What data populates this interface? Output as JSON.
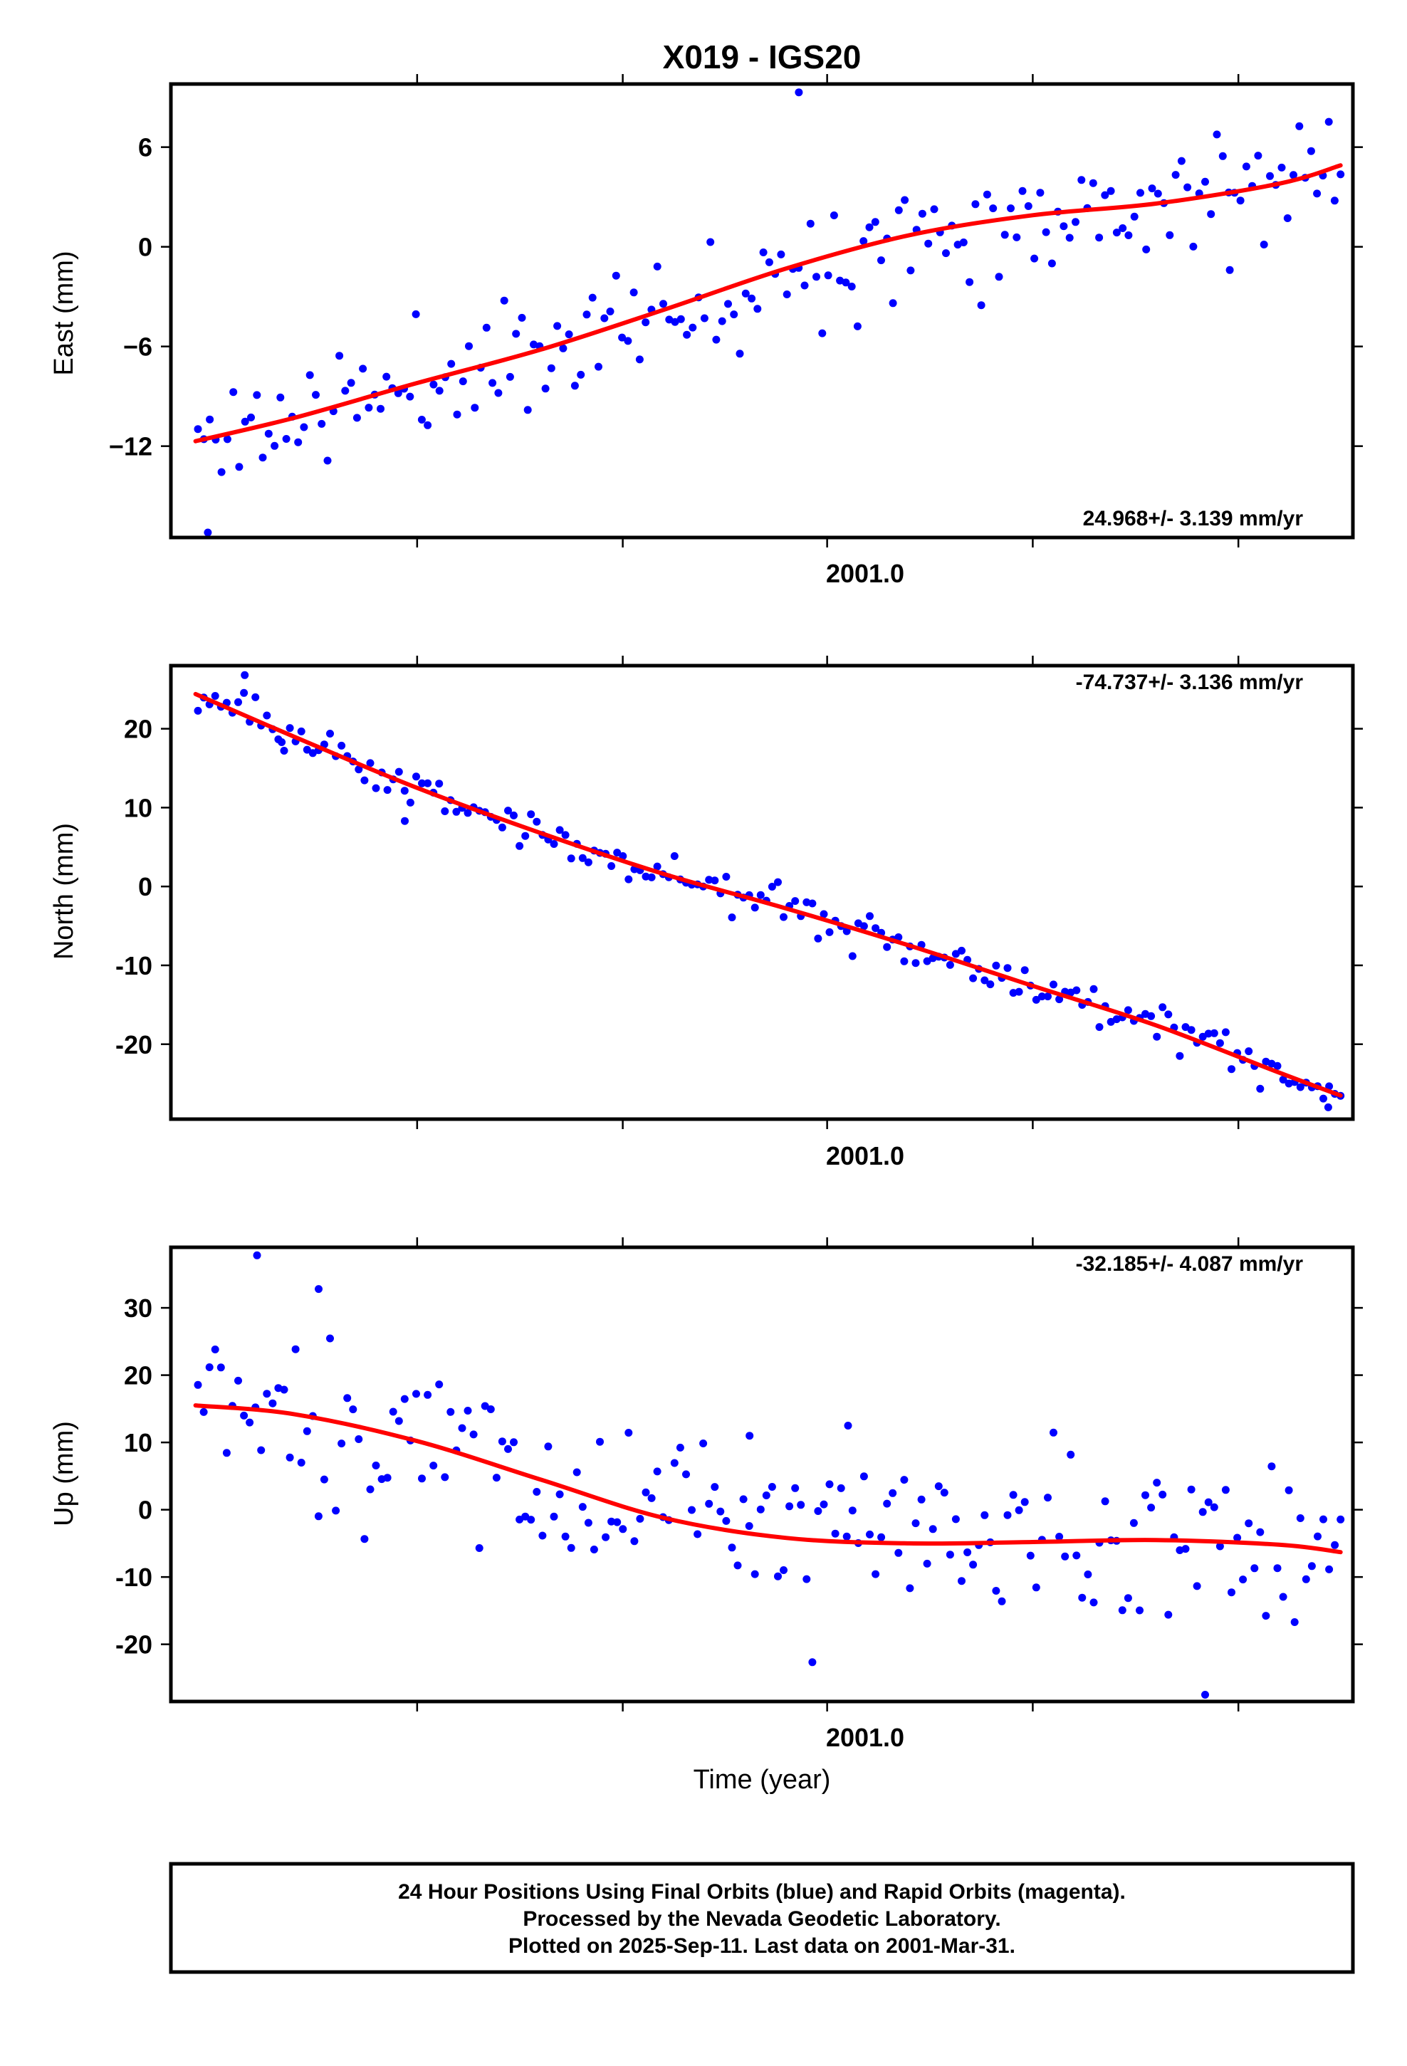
{
  "title": "X019 - IGS20",
  "colors": {
    "final_orbits": "#0000ff",
    "rapid_orbits": "#ff00ff",
    "model": "#ff0000"
  },
  "chart_data": [
    {
      "type": "scatter",
      "ylabel": "East (mm)",
      "xlabel": "",
      "rate_label": "24.968+/- 3.139 mm/yr",
      "xlim": [
        2000.3,
        2001.26
      ],
      "ylim": [
        -17.5,
        9.8
      ],
      "yticks": [
        6,
        0,
        -6,
        -12
      ],
      "ytick_labels": [
        "6",
        "0",
        "−6",
        "−12"
      ],
      "xtick_label": "2001.0",
      "xtick_value": 2001.0,
      "x_minor_ticks": [
        2000.5,
        2000.667,
        2000.833,
        2001.0,
        2001.167
      ],
      "fit": [
        [
          2000.32,
          -11.7
        ],
        [
          2000.4,
          -10.3
        ],
        [
          2000.5,
          -8.2
        ],
        [
          2000.6,
          -6.2
        ],
        [
          2000.7,
          -3.8
        ],
        [
          2000.8,
          -1.3
        ],
        [
          2000.9,
          0.7
        ],
        [
          2001.0,
          1.9
        ],
        [
          2001.1,
          2.6
        ],
        [
          2001.2,
          3.8
        ],
        [
          2001.25,
          4.9
        ]
      ],
      "series": [
        {
          "seed": 11,
          "n": 195,
          "x_start": 2000.322,
          "x_end": 2001.25,
          "noise": 1.7,
          "extra_points": [
            [
              2000.81,
              9.3
            ],
            [
              2000.33,
              -17.2
            ],
            [
              2001.16,
              -1.4
            ]
          ]
        }
      ]
    },
    {
      "type": "scatter",
      "ylabel": "North (mm)",
      "xlabel": "",
      "rate_label": "-74.737+/- 3.136 mm/yr",
      "xlim": [
        2000.3,
        2001.26
      ],
      "ylim": [
        -29.5,
        28
      ],
      "yticks": [
        20,
        10,
        0,
        -10,
        -20
      ],
      "ytick_labels": [
        "20",
        "10",
        "0",
        "-10",
        "-20"
      ],
      "xtick_label": "2001.0",
      "xtick_value": 2001.0,
      "x_minor_ticks": [
        2000.5,
        2000.667,
        2000.833,
        2001.0,
        2001.167
      ],
      "fit": [
        [
          2000.32,
          24.4
        ],
        [
          2000.4,
          19.0
        ],
        [
          2000.5,
          12.5
        ],
        [
          2000.6,
          6.8
        ],
        [
          2000.7,
          1.6
        ],
        [
          2000.8,
          -2.8
        ],
        [
          2000.9,
          -7.5
        ],
        [
          2001.0,
          -12.6
        ],
        [
          2001.1,
          -17.6
        ],
        [
          2001.2,
          -23.6
        ],
        [
          2001.25,
          -26.5
        ]
      ],
      "series": [
        {
          "seed": 23,
          "n": 200,
          "x_start": 2000.322,
          "x_end": 2001.25,
          "noise": 1.3,
          "extra_points": [
            [
              2000.36,
              26.8
            ],
            [
              2000.39,
              18.3
            ],
            [
              2000.49,
              8.3
            ],
            [
              2001.24,
              -28.0
            ]
          ]
        }
      ]
    },
    {
      "type": "scatter",
      "ylabel": "Up (mm)",
      "xlabel": "Time (year)",
      "rate_label": "-32.185+/- 4.087 mm/yr",
      "xlim": [
        2000.3,
        2001.26
      ],
      "ylim": [
        -28.5,
        39
      ],
      "yticks": [
        30,
        20,
        10,
        0,
        -10,
        -20
      ],
      "ytick_labels": [
        "30",
        "20",
        "10",
        "0",
        "-10",
        "-20"
      ],
      "xtick_label": "2001.0",
      "xtick_value": 2001.0,
      "x_minor_ticks": [
        2000.5,
        2000.667,
        2000.833,
        2001.0,
        2001.167
      ],
      "fit": [
        [
          2000.32,
          15.5
        ],
        [
          2000.4,
          14.2
        ],
        [
          2000.5,
          10.2
        ],
        [
          2000.6,
          4.5
        ],
        [
          2000.7,
          -1.2
        ],
        [
          2000.8,
          -4.2
        ],
        [
          2000.9,
          -5.0
        ],
        [
          2001.0,
          -4.8
        ],
        [
          2001.1,
          -4.5
        ],
        [
          2001.2,
          -5.2
        ],
        [
          2001.25,
          -6.3
        ]
      ],
      "series": [
        {
          "seed": 37,
          "n": 200,
          "x_start": 2000.322,
          "x_end": 2001.25,
          "noise": 6.5,
          "extra_points": [
            [
              2000.37,
              37.8
            ],
            [
              2000.42,
              32.8
            ],
            [
              2000.85,
              12.5
            ],
            [
              2001.14,
              -27.5
            ],
            [
              2000.77,
              11.0
            ]
          ]
        }
      ]
    }
  ],
  "footer": {
    "line1": "24 Hour Positions Using Final Orbits (blue) and Rapid Orbits (magenta).",
    "line2": "Processed by the Nevada Geodetic Laboratory.",
    "line3": "Plotted on 2025-Sep-11. Last data on 2001-Mar-31."
  }
}
